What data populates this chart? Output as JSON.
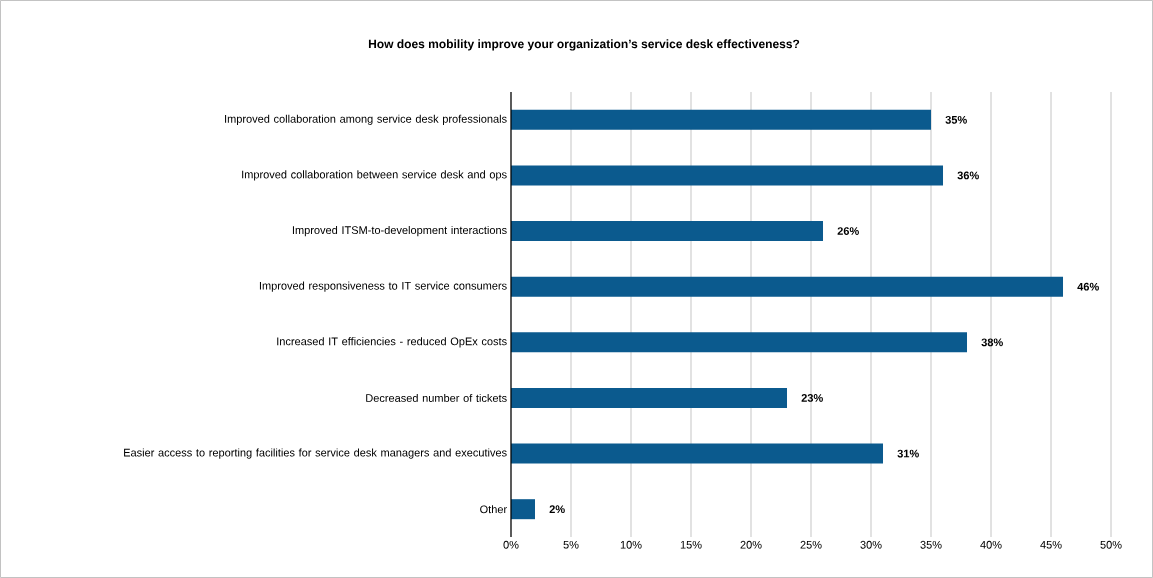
{
  "chart_data": {
    "type": "bar",
    "orientation": "horizontal",
    "title": "How does mobility improve your organization’s service desk effectiveness?",
    "categories": [
      "Improved collaboration among service desk professionals",
      "Improved collaboration between service desk and ops",
      "Improved ITSM-to-development interactions",
      "Improved responsiveness to IT service consumers",
      "Increased IT efficiencies - reduced OpEx costs",
      "Decreased number of tickets",
      "Easier access to reporting facilities for service desk managers and executives",
      "Other"
    ],
    "values": [
      35,
      36,
      26,
      46,
      38,
      23,
      31,
      2
    ],
    "value_labels": [
      "35%",
      "36%",
      "26%",
      "46%",
      "38%",
      "23%",
      "31%",
      "2%"
    ],
    "color": "#0b5a8e",
    "xlim": [
      0,
      50
    ],
    "xticks": [
      {
        "value": 0,
        "label": "0%"
      },
      {
        "value": 5,
        "label": "5%"
      },
      {
        "value": 10,
        "label": "10%"
      },
      {
        "value": 15,
        "label": "15%"
      },
      {
        "value": 20,
        "label": "20%"
      },
      {
        "value": 25,
        "label": "25%"
      },
      {
        "value": 30,
        "label": "30%"
      },
      {
        "value": 35,
        "label": "35%"
      },
      {
        "value": 40,
        "label": "40%"
      },
      {
        "value": 45,
        "label": "45%"
      },
      {
        "value": 50,
        "label": "50%"
      }
    ],
    "grid": "x"
  }
}
